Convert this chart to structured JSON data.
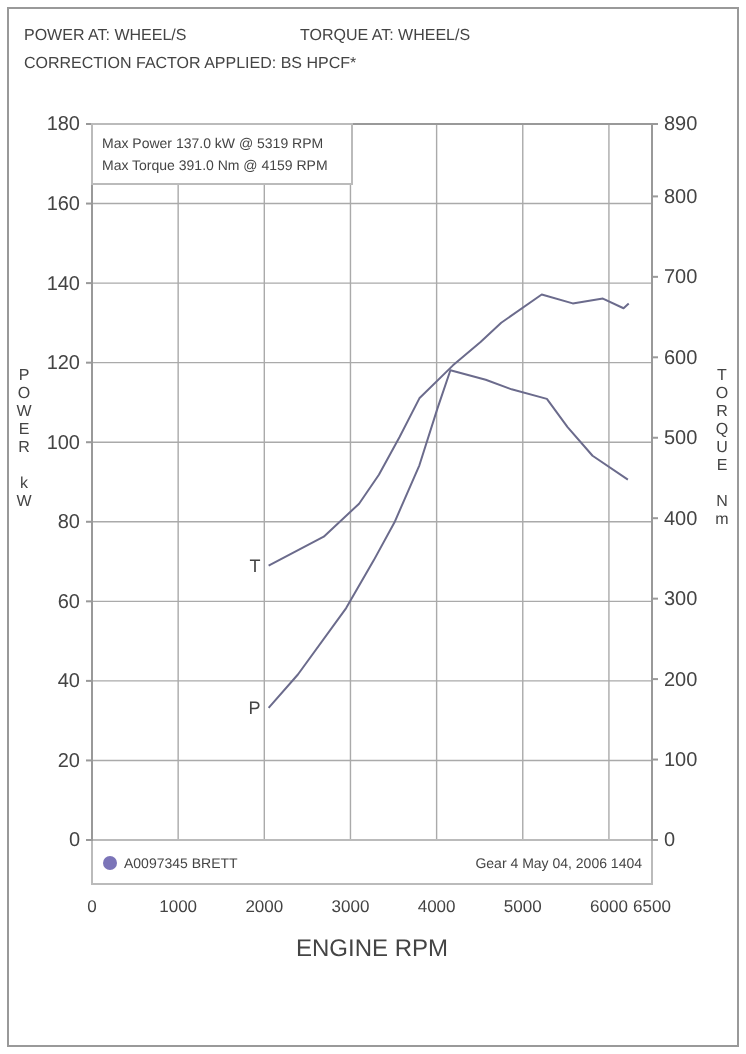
{
  "chart_data": {
    "type": "line",
    "xlabel": "ENGINE RPM",
    "ylabel": "POWER kW",
    "y2label": "TORQUE Nm",
    "xlim": [
      0,
      6500
    ],
    "xticks": [
      0,
      1000,
      2000,
      3000,
      4000,
      5000,
      6000,
      6500
    ],
    "ylim": [
      0,
      180
    ],
    "yticks": [
      0,
      20,
      40,
      60,
      80,
      100,
      120,
      140,
      160,
      180
    ],
    "y2lim": [
      0,
      890
    ],
    "y2ticks": [
      0,
      100,
      200,
      300,
      400,
      500,
      600,
      700,
      800,
      890
    ],
    "grid": true,
    "series": [
      {
        "name": "T",
        "axis": "y2",
        "color": "#6b6b8c",
        "x": [
          2050,
          2690,
          3100,
          3330,
          3570,
          3800,
          4190,
          4510,
          4750,
          5220,
          5580,
          5930,
          6170,
          6230
        ],
        "values": [
          341,
          377,
          418,
          454,
          501,
          549,
          590,
          619,
          643,
          678,
          667,
          673,
          661,
          667
        ]
      },
      {
        "name": "P",
        "axis": "y",
        "color": "#6b6b8c",
        "x": [
          2050,
          2390,
          2950,
          3270,
          3510,
          3800,
          4010,
          4160,
          4570,
          4870,
          5280,
          5520,
          5810,
          6220
        ],
        "values": [
          33.2,
          41.6,
          58.3,
          70.3,
          79.8,
          94.2,
          108.5,
          118.1,
          115.7,
          113.3,
          110.9,
          103.8,
          96.6,
          90.6
        ]
      }
    ],
    "annotations": [
      "POWER AT: WHEEL/S",
      "TORQUE AT: WHEEL/S",
      "CORRECTION FACTOR APPLIED: BS HPCF*",
      "Max Power 137.0 kW @ 5319 RPM",
      "Max Torque 391.0 Nm @ 4159 RPM",
      "A0097345 BRETT",
      "Gear 4 May 04, 2006 1404"
    ]
  }
}
